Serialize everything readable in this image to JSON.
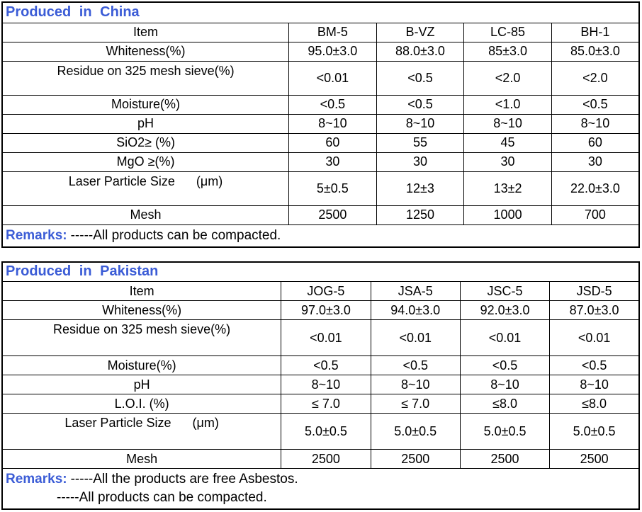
{
  "colors": {
    "accent_blue": "#3b5cd6",
    "text": "#000000",
    "border": "#000000",
    "background": "#ffffff"
  },
  "tables": [
    {
      "title": "Produced in China",
      "columns": [
        "Item",
        "BM-5",
        "B-VZ",
        "LC-85",
        "BH-1"
      ],
      "rows": [
        {
          "label": "Whiteness(%)",
          "tall": false,
          "values": [
            "95.0±3.0",
            "88.0±3.0",
            "85±3.0",
            "85.0±3.0"
          ]
        },
        {
          "label": "Residue on 325 mesh sieve(%)",
          "tall": true,
          "values": [
            "<0.01",
            "<0.5",
            "<2.0",
            "<2.0"
          ]
        },
        {
          "label": "Moisture(%)",
          "tall": false,
          "values": [
            "<0.5",
            "<0.5",
            "<1.0",
            "<0.5"
          ]
        },
        {
          "label": "pH",
          "tall": false,
          "values": [
            "8~10",
            "8~10",
            "8~10",
            "8~10"
          ]
        },
        {
          "label": "SiO2≥ (%)",
          "tall": false,
          "values": [
            "60",
            "55",
            "45",
            "60"
          ]
        },
        {
          "label": "MgO ≥(%)",
          "tall": false,
          "values": [
            "30",
            "30",
            "30",
            "30"
          ]
        },
        {
          "label": "Laser Particle Size      (μm)",
          "tall": true,
          "values": [
            "5±0.5",
            "12±3",
            "13±2",
            "22.0±3.0"
          ]
        },
        {
          "label": "Mesh",
          "tall": false,
          "values": [
            "2500",
            "1250",
            "1000",
            "700"
          ]
        }
      ],
      "remarks": [
        {
          "prefix": "Remarks:",
          "text": "-----All products can be compacted."
        }
      ]
    },
    {
      "title": "Produced in Pakistan",
      "columns": [
        "Item",
        "JOG-5",
        "JSA-5",
        "JSC-5",
        "JSD-5"
      ],
      "rows": [
        {
          "label": "Whiteness(%)",
          "tall": false,
          "values": [
            "97.0±3.0",
            "94.0±3.0",
            "92.0±3.0",
            "87.0±3.0"
          ]
        },
        {
          "label": "Residue on 325 mesh sieve(%)",
          "tall": true,
          "values": [
            "<0.01",
            "<0.01",
            "<0.01",
            "<0.01"
          ]
        },
        {
          "label": "Moisture(%)",
          "tall": false,
          "values": [
            "<0.5",
            "<0.5",
            "<0.5",
            "<0.5"
          ]
        },
        {
          "label": "pH",
          "tall": false,
          "values": [
            "8~10",
            "8~10",
            "8~10",
            "8~10"
          ]
        },
        {
          "label": "L.O.I. (%)",
          "tall": false,
          "values": [
            "≤ 7.0",
            "≤ 7.0",
            "≤8.0",
            "≤8.0"
          ]
        },
        {
          "label": "Laser Particle Size      (μm)",
          "tall": true,
          "values": [
            "5.0±0.5",
            "5.0±0.5",
            "5.0±0.5",
            "5.0±0.5"
          ]
        },
        {
          "label": "Mesh",
          "tall": false,
          "values": [
            "2500",
            "2500",
            "2500",
            "2500"
          ]
        }
      ],
      "remarks": [
        {
          "prefix": "Remarks:",
          "text": "-----All the products are free Asbestos."
        },
        {
          "prefix": "",
          "text": "-----All products can be compacted."
        }
      ]
    }
  ]
}
